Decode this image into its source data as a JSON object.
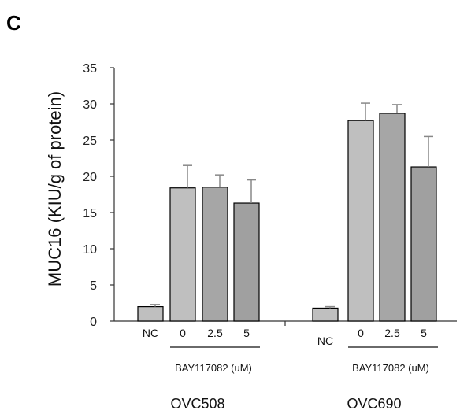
{
  "panel_label": "C",
  "chart_data": {
    "type": "bar",
    "ylabel": "MUC16 (KIU/g of protein)",
    "ylim": [
      0,
      35
    ],
    "yticks": [
      0,
      5,
      10,
      15,
      20,
      25,
      30,
      35
    ],
    "grid": false,
    "treatment_label": "BAY117082  (uM)",
    "groups": [
      {
        "name": "OVC508",
        "bars": [
          {
            "label": "NC",
            "value": 2.0,
            "error": 0.3,
            "color": "#bfbfbf"
          },
          {
            "label": "0",
            "value": 18.4,
            "error": 3.1,
            "color": "#bfbfbf"
          },
          {
            "label": "2.5",
            "value": 18.5,
            "error": 1.7,
            "color": "#a6a6a6"
          },
          {
            "label": "5",
            "value": 16.3,
            "error": 3.2,
            "color": "#a0a0a0"
          }
        ]
      },
      {
        "name": "OVC690",
        "bars": [
          {
            "label": "NC",
            "value": 1.8,
            "error": 0.2,
            "color": "#bfbfbf"
          },
          {
            "label": "0",
            "value": 27.7,
            "error": 2.4,
            "color": "#bfbfbf"
          },
          {
            "label": "2.5",
            "value": 28.7,
            "error": 1.2,
            "color": "#a6a6a6"
          },
          {
            "label": "5",
            "value": 21.3,
            "error": 4.2,
            "color": "#a0a0a0"
          }
        ]
      }
    ]
  }
}
